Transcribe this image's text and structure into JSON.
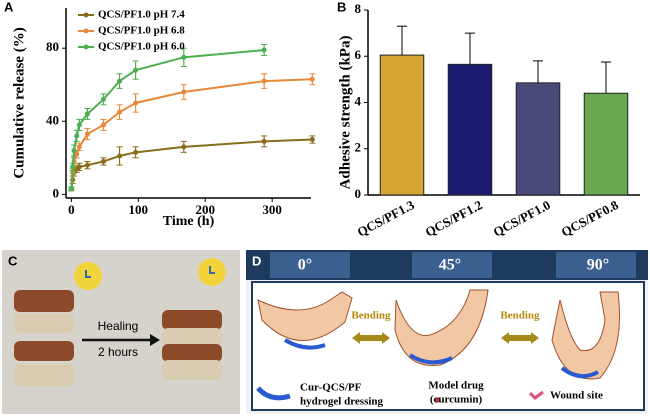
{
  "chart_data": [
    {
      "type": "line",
      "y_label": "Cumulative release (%)",
      "x_label": "Time (h)",
      "xlim": [
        -8,
        358
      ],
      "xticks": [
        0,
        100,
        200,
        300
      ],
      "ylim": [
        -2,
        102
      ],
      "yticks": [
        0,
        40,
        80
      ],
      "legend": "upper left",
      "series": [
        {
          "name": "QCS/PF1.0 pH 7.4",
          "color": "#8a6d1c",
          "x": [
            0,
            2,
            4,
            8,
            12,
            24,
            48,
            72,
            96,
            168,
            288,
            360
          ],
          "values": [
            3,
            8,
            12,
            14,
            15,
            16,
            18,
            21,
            23,
            26,
            29,
            30
          ],
          "errors": [
            1,
            2,
            2,
            2,
            2,
            2,
            2,
            5,
            3,
            3,
            3,
            2
          ]
        },
        {
          "name": "QCS/PF1.0 pH 6.8",
          "color": "#e8893a",
          "x": [
            0,
            2,
            4,
            8,
            12,
            24,
            48,
            72,
            96,
            168,
            288,
            360
          ],
          "values": [
            3,
            12,
            18,
            22,
            26,
            33,
            38,
            45,
            50,
            56,
            62,
            63
          ],
          "errors": [
            1,
            2,
            2,
            2,
            2,
            3,
            3,
            4,
            5,
            4,
            4,
            3
          ]
        },
        {
          "name": "QCS/PF1.0 pH 6.0",
          "color": "#4caf50",
          "x": [
            0,
            2,
            4,
            8,
            12,
            24,
            48,
            72,
            96,
            168,
            288
          ],
          "values": [
            3,
            15,
            24,
            32,
            38,
            44,
            52,
            62,
            68,
            75,
            79
          ],
          "errors": [
            1,
            2,
            3,
            3,
            3,
            3,
            3,
            4,
            5,
            5,
            3
          ]
        }
      ]
    },
    {
      "type": "bar",
      "y_label": "Adhesive strength (kPa)",
      "categories": [
        "QCS/PF1.3",
        "QCS/PF1.2",
        "QCS/PF1.0",
        "QCS/PF0.8"
      ],
      "values": [
        6.05,
        5.65,
        4.85,
        4.4
      ],
      "errors": [
        1.25,
        1.35,
        0.95,
        1.35
      ],
      "colors": [
        "#d4a534",
        "#1a1a6e",
        "#4a4a7a",
        "#6aa84f"
      ],
      "ylim": [
        0,
        8
      ],
      "yticks": [
        0,
        2,
        4,
        6,
        8
      ]
    }
  ],
  "panel_labels": [
    "A",
    "B",
    "C",
    "D"
  ],
  "panel_c": {
    "arrow_top": "Healing",
    "arrow_bottom": "2 hours"
  },
  "panel_d": {
    "angles": [
      "0°",
      "45°",
      "90°"
    ],
    "bending": [
      "Bending",
      "Bending"
    ],
    "legend": {
      "dressing": [
        "Cur-QCS/PF",
        "hydrogel dressing"
      ],
      "drug": [
        "Model drug",
        "(curcumin)"
      ],
      "wound": "Wound site"
    }
  }
}
